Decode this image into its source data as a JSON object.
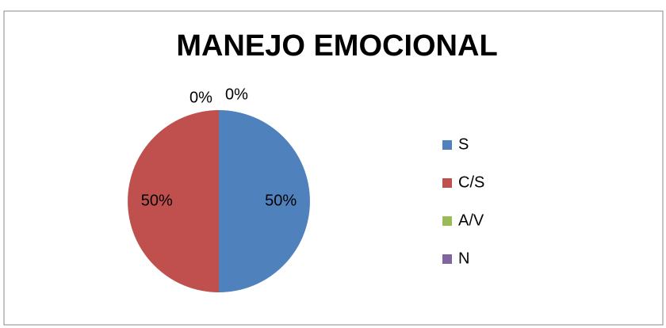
{
  "chart_data": {
    "type": "pie",
    "title": "MANEJO EMOCIONAL",
    "categories": [
      "S",
      "C/S",
      "A/V",
      "N"
    ],
    "values": [
      50,
      50,
      0,
      0
    ],
    "value_labels": [
      "50%",
      "50%",
      "0%",
      "0%"
    ],
    "colors": [
      "#4f81bd",
      "#c0504d",
      "#9bbb59",
      "#8064a2"
    ],
    "legend": "right"
  }
}
